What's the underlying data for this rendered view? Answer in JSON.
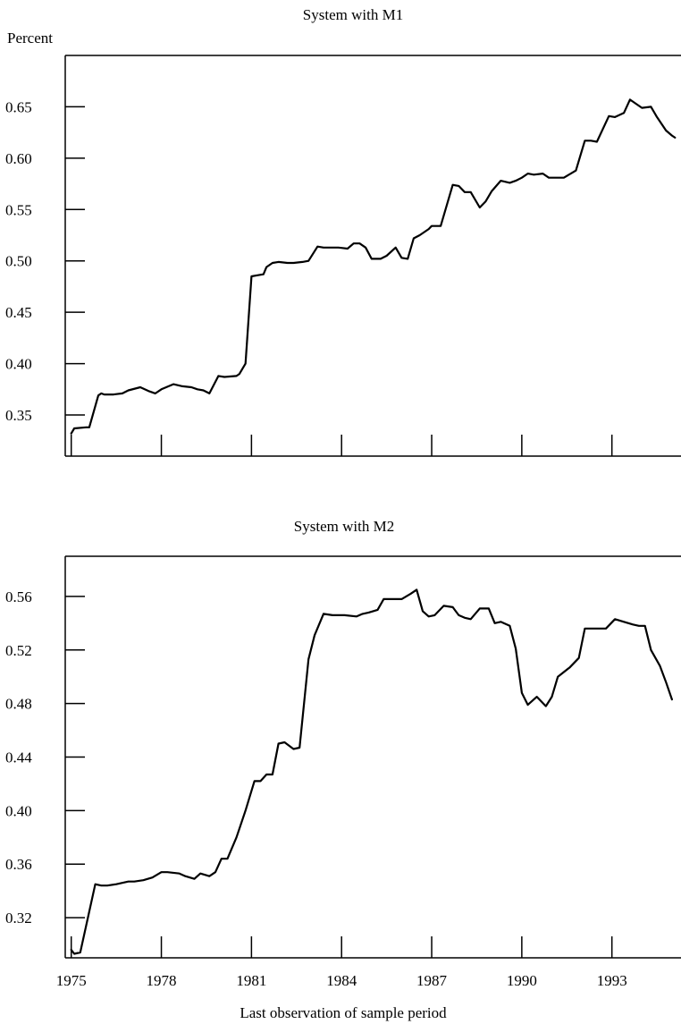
{
  "chart_data": [
    {
      "type": "line",
      "title": "System with M1",
      "ylabel": "Percent",
      "xlabel": "",
      "xlim": [
        1974.8,
        1995.3
      ],
      "ylim": [
        0.31,
        0.7
      ],
      "xticks": [
        1975,
        1978,
        1981,
        1984,
        1987,
        1990,
        1993
      ],
      "yticks": [
        0.35,
        0.4,
        0.45,
        0.5,
        0.55,
        0.6,
        0.65
      ],
      "ytick_labels": [
        "0.35",
        "0.40",
        "0.45",
        "0.50",
        "0.55",
        "0.60",
        "0.65"
      ],
      "grid": false,
      "series": [
        {
          "x": [
            1975.0,
            1975.1,
            1975.5,
            1975.6,
            1975.9,
            1976.0,
            1976.1,
            1976.4,
            1976.7,
            1976.9,
            1977.3,
            1977.6,
            1977.8,
            1978.0,
            1978.4,
            1978.7,
            1979.0,
            1979.2,
            1979.4,
            1979.6,
            1979.9,
            1980.1,
            1980.5,
            1980.6,
            1980.8,
            1981.0,
            1981.2,
            1981.4,
            1981.5,
            1981.7,
            1981.9,
            1982.2,
            1982.4,
            1982.7,
            1982.9,
            1983.2,
            1983.4,
            1983.6,
            1983.9,
            1984.2,
            1984.4,
            1984.6,
            1984.8,
            1985.0,
            1985.3,
            1985.5,
            1985.8,
            1986.0,
            1986.2,
            1986.4,
            1986.6,
            1986.9,
            1987.0,
            1987.3,
            1987.7,
            1987.9,
            1988.1,
            1988.3,
            1988.6,
            1988.8,
            1989.0,
            1989.3,
            1989.6,
            1989.8,
            1990.0,
            1990.2,
            1990.4,
            1990.7,
            1990.9,
            1991.1,
            1991.4,
            1991.8,
            1992.1,
            1992.3,
            1992.5,
            1992.9,
            1993.1,
            1993.4,
            1993.6,
            1993.8,
            1994.0,
            1994.3,
            1994.5,
            1994.8,
            1995.0,
            1995.1
          ],
          "y": [
            0.332,
            0.337,
            0.338,
            0.338,
            0.369,
            0.371,
            0.37,
            0.37,
            0.371,
            0.374,
            0.377,
            0.373,
            0.371,
            0.375,
            0.38,
            0.378,
            0.377,
            0.375,
            0.374,
            0.371,
            0.388,
            0.387,
            0.388,
            0.39,
            0.4,
            0.485,
            0.486,
            0.487,
            0.494,
            0.498,
            0.499,
            0.498,
            0.498,
            0.499,
            0.5,
            0.514,
            0.513,
            0.513,
            0.513,
            0.512,
            0.517,
            0.517,
            0.513,
            0.502,
            0.502,
            0.505,
            0.513,
            0.503,
            0.502,
            0.522,
            0.525,
            0.531,
            0.534,
            0.534,
            0.574,
            0.573,
            0.567,
            0.567,
            0.552,
            0.558,
            0.568,
            0.578,
            0.576,
            0.578,
            0.581,
            0.585,
            0.584,
            0.585,
            0.581,
            0.581,
            0.581,
            0.588,
            0.617,
            0.617,
            0.616,
            0.641,
            0.64,
            0.644,
            0.657,
            0.653,
            0.649,
            0.65,
            0.64,
            0.627,
            0.622,
            0.62
          ]
        }
      ]
    },
    {
      "type": "line",
      "title": "System with M2",
      "ylabel": "",
      "xlabel": "Last observation of sample period",
      "xlim": [
        1974.8,
        1995.3
      ],
      "ylim": [
        0.29,
        0.59
      ],
      "xticks": [
        1975,
        1978,
        1981,
        1984,
        1987,
        1990,
        1993
      ],
      "xtick_labels": [
        "1975",
        "1978",
        "1981",
        "1984",
        "1987",
        "1990",
        "1993"
      ],
      "yticks": [
        0.32,
        0.36,
        0.4,
        0.44,
        0.48,
        0.52,
        0.56
      ],
      "ytick_labels": [
        "0.32",
        "0.36",
        "0.40",
        "0.44",
        "0.48",
        "0.52",
        "0.56"
      ],
      "grid": false,
      "series": [
        {
          "x": [
            1975.0,
            1975.1,
            1975.3,
            1975.8,
            1976.0,
            1976.2,
            1976.5,
            1976.9,
            1977.1,
            1977.4,
            1977.7,
            1978.0,
            1978.2,
            1978.6,
            1978.8,
            1979.1,
            1979.3,
            1979.6,
            1979.8,
            1980.0,
            1980.2,
            1980.5,
            1980.8,
            1981.1,
            1981.3,
            1981.5,
            1981.7,
            1981.9,
            1982.1,
            1982.4,
            1982.6,
            1982.9,
            1983.1,
            1983.4,
            1983.7,
            1984.1,
            1984.5,
            1984.7,
            1984.9,
            1985.2,
            1985.4,
            1985.6,
            1986.0,
            1986.3,
            1986.5,
            1986.7,
            1986.9,
            1987.1,
            1987.4,
            1987.7,
            1987.9,
            1988.1,
            1988.3,
            1988.6,
            1988.9,
            1989.1,
            1989.3,
            1989.6,
            1989.8,
            1990.0,
            1990.2,
            1990.5,
            1990.8,
            1991.0,
            1991.2,
            1991.6,
            1991.9,
            1992.1,
            1992.4,
            1992.6,
            1992.8,
            1993.1,
            1993.4,
            1993.7,
            1993.9,
            1994.1,
            1994.3,
            1994.6,
            1994.8,
            1995.0
          ],
          "y": [
            0.296,
            0.293,
            0.294,
            0.345,
            0.344,
            0.344,
            0.345,
            0.347,
            0.347,
            0.348,
            0.35,
            0.354,
            0.354,
            0.353,
            0.351,
            0.349,
            0.353,
            0.351,
            0.354,
            0.364,
            0.364,
            0.38,
            0.4,
            0.422,
            0.422,
            0.427,
            0.427,
            0.45,
            0.451,
            0.446,
            0.447,
            0.513,
            0.531,
            0.547,
            0.546,
            0.546,
            0.545,
            0.547,
            0.548,
            0.55,
            0.558,
            0.558,
            0.558,
            0.562,
            0.565,
            0.549,
            0.545,
            0.546,
            0.553,
            0.552,
            0.546,
            0.544,
            0.543,
            0.551,
            0.551,
            0.54,
            0.541,
            0.538,
            0.521,
            0.488,
            0.479,
            0.485,
            0.478,
            0.485,
            0.5,
            0.507,
            0.514,
            0.536,
            0.536,
            0.536,
            0.536,
            0.543,
            0.541,
            0.539,
            0.538,
            0.538,
            0.52,
            0.508,
            0.496,
            0.483
          ]
        }
      ]
    }
  ]
}
